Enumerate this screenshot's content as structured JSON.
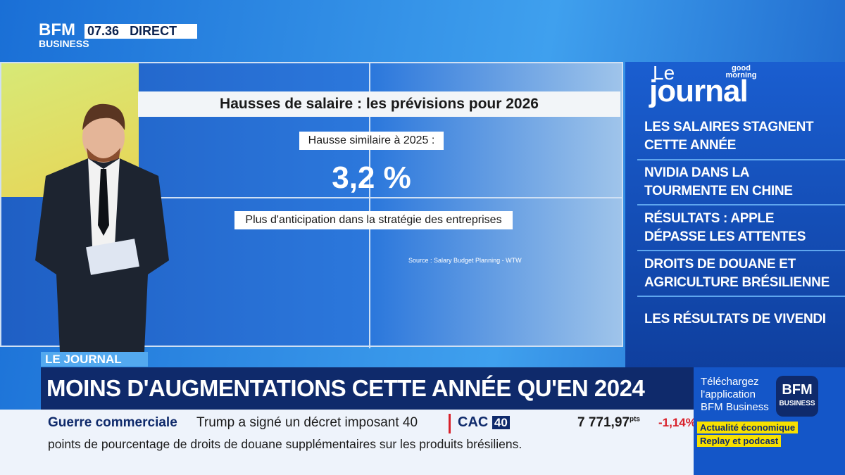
{
  "header": {
    "logo_top": "BFM",
    "logo_bottom": "BUSINESS",
    "time": "07.36",
    "live": "DIRECT"
  },
  "screen": {
    "title": "Hausses de salaire : les prévisions pour 2026",
    "label": "Hausse similaire à 2025 :",
    "figure": "3,2 %",
    "note": "Plus d'anticipation dans la stratégie des entreprises",
    "source": "Source : Salary Budget Planning - WTW"
  },
  "panel": {
    "le": "Le",
    "journal": "journal",
    "show": "good morning",
    "items": [
      "LES SALAIRES STAGNENT CETTE ANNÉE",
      "NVIDIA DANS LA TOURMENTE EN CHINE",
      "RÉSULTATS : APPLE DÉPASSE LES ATTENTES",
      "DROITS DE DOUANE ET AGRICULTURE BRÉSILIENNE",
      "LES RÉSULTATS DE VIVENDI"
    ]
  },
  "banner": {
    "tag": "LE JOURNAL",
    "headline": "MOINS D'AUGMENTATIONS CETTE ANNÉE QU'EN 2024"
  },
  "ticker": {
    "topic": "Guerre commerciale",
    "line1": "Trump a signé un décret imposant 40",
    "line2": "points de pourcentage de droits de douane supplémentaires sur les produits brésiliens."
  },
  "market": {
    "index": "CAC",
    "index_num": "40",
    "value": "7 771,97",
    "unit": "pts",
    "change": "-1,14%"
  },
  "promo": {
    "text": "Téléchargez l'application BFM Business",
    "logo_top": "BFM",
    "logo_bottom": "BUSINESS",
    "tag1": "Actualité économique",
    "tag2": "Replay et podcast"
  }
}
